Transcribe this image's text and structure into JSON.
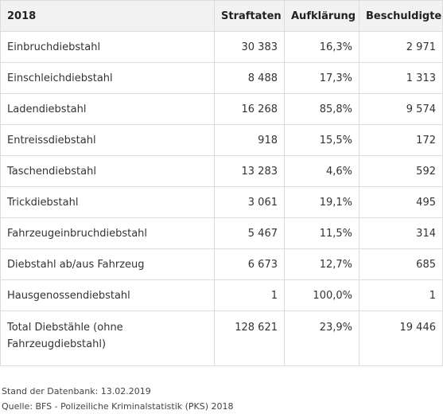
{
  "table": {
    "headers": [
      "2018",
      "Straftaten",
      "Aufklärung",
      "Beschuldigte"
    ],
    "rows": [
      [
        "Einbruchdiebstahl",
        "30 383",
        "16,3%",
        "2 971"
      ],
      [
        "Einschleichdiebstahl",
        "8 488",
        "17,3%",
        "1 313"
      ],
      [
        "Ladendiebstahl",
        "16 268",
        "85,8%",
        "9 574"
      ],
      [
        "Entreissdiebstahl",
        "918",
        "15,5%",
        "172"
      ],
      [
        "Taschendiebstahl",
        "13 283",
        "4,6%",
        "592"
      ],
      [
        "Trickdiebstahl",
        "3 061",
        "19,1%",
        "495"
      ],
      [
        "Fahrzeugeinbruchdiebstahl",
        "5 467",
        "11,5%",
        "314"
      ],
      [
        "Diebstahl ab/aus Fahrzeug",
        "6 673",
        "12,7%",
        "685"
      ],
      [
        "Hausgenossendiebstahl",
        "1",
        "100,0%",
        "1"
      ]
    ],
    "total": [
      "Total Diebstähle (ohne Fahrzeugdiebstahl)",
      "128 621",
      "23,9%",
      "19 446"
    ]
  },
  "footer": {
    "stand": "Stand der Datenbank: 13.02.2019",
    "quelle": "Quelle: BFS - Polizeiliche Kriminalstatistik (PKS) 2018"
  }
}
